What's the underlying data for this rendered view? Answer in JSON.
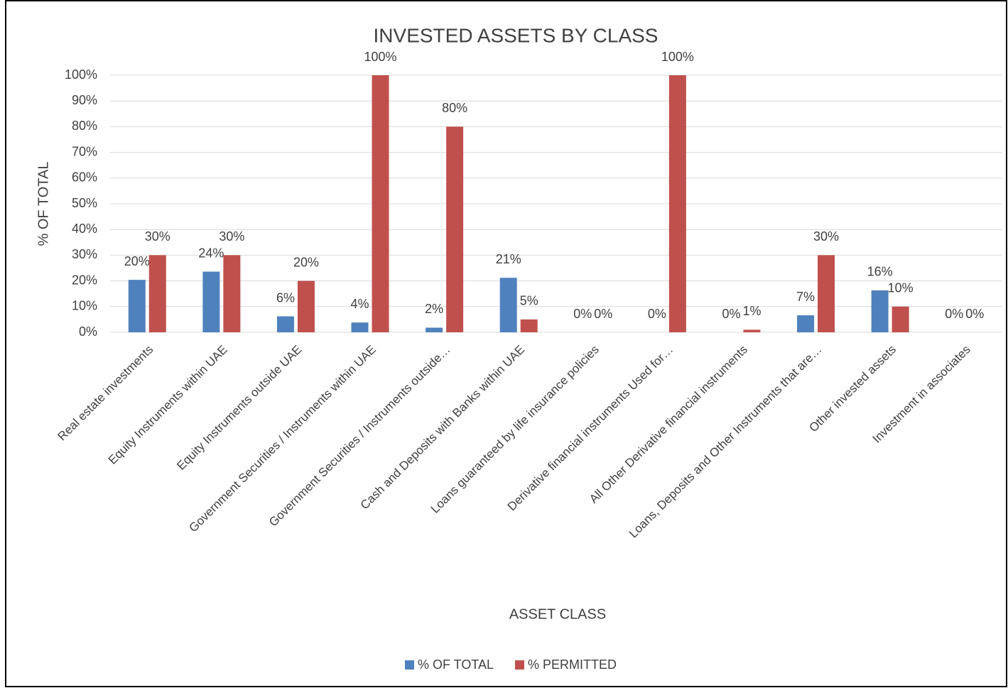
{
  "chart_data": {
    "type": "bar",
    "title": "INVESTED ASSETS BY CLASS",
    "x_label": "ASSET CLASS",
    "y_label": "% OF TOTAL",
    "categories": [
      "Real estate investments",
      "Equity Instruments within UAE",
      "Equity Instruments outside UAE",
      "Government Securities / Instruments within UAE",
      "Government Securities / Instruments outside…",
      "Cash and Deposits with Banks within UAE",
      "Loans guaranteed by life insurance policies",
      "Derivative financial instruments Used for…",
      "All Other Derivative financial instruments",
      "Loans, Deposits and Other Instruments that are…",
      "Other invested assets",
      "Investment in associates"
    ],
    "series": [
      {
        "name": "% OF TOTAL",
        "color": "#4f81bd",
        "values": [
          20.4,
          23.6,
          6.2,
          3.8,
          1.8,
          21.2,
          0,
          0,
          0,
          6.6,
          16.3,
          0
        ],
        "value_labels": [
          "20%",
          "24%",
          "6%",
          "4%",
          "2%",
          "21%",
          "0%",
          "0%",
          "0%",
          "7%",
          "16%",
          "0%"
        ]
      },
      {
        "name": "% PERMITTED",
        "color": "#c0504d",
        "values": [
          30,
          30,
          20,
          100,
          80,
          5,
          0,
          100,
          1,
          30,
          10,
          0
        ],
        "value_labels": [
          "30%",
          "30%",
          "20%",
          "100%",
          "80%",
          "5%",
          "0%",
          "100%",
          "1%",
          "30%",
          "10%",
          "0%"
        ]
      }
    ],
    "ylim": [
      0,
      100
    ],
    "yticks": [
      {
        "value": 0,
        "label": "0%"
      },
      {
        "value": 10,
        "label": "10%"
      },
      {
        "value": 20,
        "label": "20%"
      },
      {
        "value": 30,
        "label": "30%"
      },
      {
        "value": 40,
        "label": "40%"
      },
      {
        "value": 50,
        "label": "50%"
      },
      {
        "value": 60,
        "label": "60%"
      },
      {
        "value": 70,
        "label": "70%"
      },
      {
        "value": 80,
        "label": "80%"
      },
      {
        "value": 90,
        "label": "90%"
      },
      {
        "value": 100,
        "label": "100%"
      }
    ],
    "grid": true,
    "legend": "bottom"
  }
}
